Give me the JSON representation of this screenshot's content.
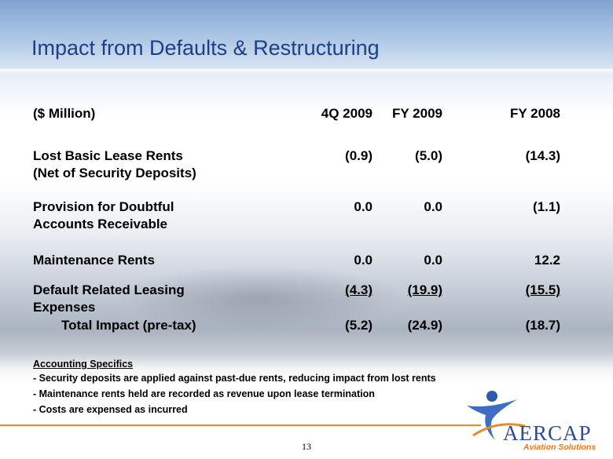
{
  "header": {
    "title": "Impact from Defaults & Restructuring"
  },
  "table": {
    "columns": [
      "($ Million)",
      "4Q 2009",
      "FY 2009",
      "FY 2008"
    ],
    "rows": [
      {
        "label": [
          "Lost Basic Lease Rents",
          "(Net of Security Deposits)"
        ],
        "values": [
          "(0.9)",
          "(5.0)",
          "(14.3)"
        ]
      },
      {
        "label": [
          "Provision for Doubtful",
          "Accounts Receivable"
        ],
        "values": [
          "0.0",
          "0.0",
          "(1.1)"
        ]
      },
      {
        "label": [
          "Maintenance Rents"
        ],
        "values": [
          "0.0",
          "0.0",
          "12.2"
        ]
      },
      {
        "label": [
          "Default Related Leasing",
          "Expenses"
        ],
        "values": [
          "(4.3)",
          "(19.9)",
          "(15.5)"
        ]
      },
      {
        "label": [
          "Total Impact (pre-tax)"
        ],
        "values": [
          "(5.2)",
          "(24.9)",
          "(18.7)"
        ]
      }
    ]
  },
  "notes": {
    "heading": "Accounting Specifics",
    "items": [
      "- Security deposits are applied against past-due rents, reducing impact from lost rents",
      "- Maintenance rents held are recorded as revenue upon lease termination",
      "- Costs are expensed as incurred"
    ]
  },
  "logo": {
    "name": "AERCAP",
    "tagline": "Aviation Solutions"
  },
  "footer": {
    "page": "13"
  }
}
